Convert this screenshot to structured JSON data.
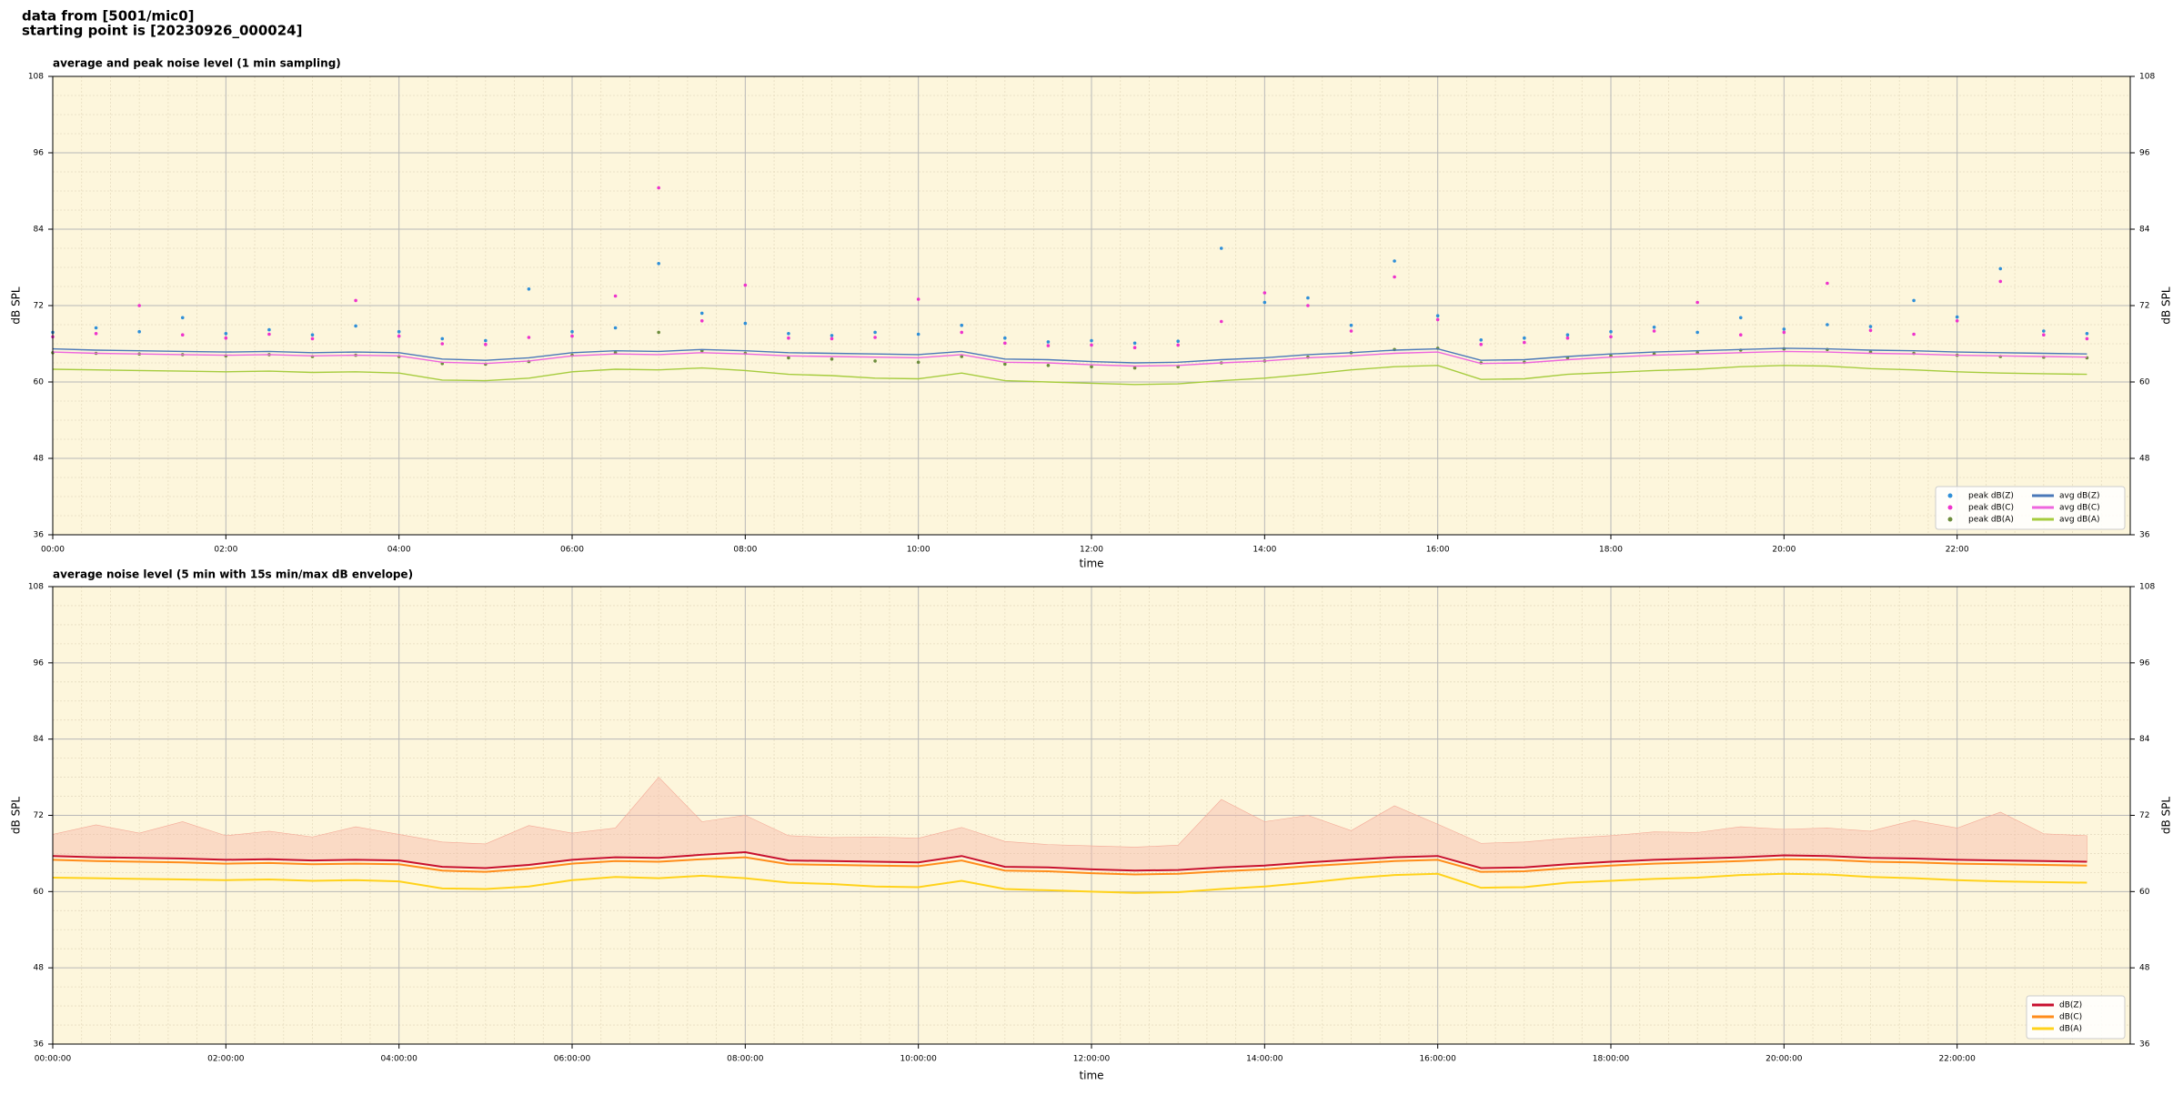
{
  "header": {
    "lines": [
      "data from [5001/mic0]",
      "starting point is [20230926_000024]"
    ]
  },
  "chart_data": [
    {
      "type": "line",
      "title": "average and peak noise level (1 min sampling)",
      "xlabel": "time",
      "ylabel": "dB SPL",
      "xlim": [
        0,
        1440
      ],
      "ylim": [
        36,
        108
      ],
      "yticks": [
        36,
        48,
        60,
        72,
        84,
        96,
        108
      ],
      "xticks": [
        {
          "value": 0,
          "label": "00:00"
        },
        {
          "value": 120,
          "label": "02:00"
        },
        {
          "value": 240,
          "label": "04:00"
        },
        {
          "value": 360,
          "label": "06:00"
        },
        {
          "value": 480,
          "label": "08:00"
        },
        {
          "value": 600,
          "label": "10:00"
        },
        {
          "value": 720,
          "label": "12:00"
        },
        {
          "value": 840,
          "label": "14:00"
        },
        {
          "value": 960,
          "label": "16:00"
        },
        {
          "value": 1080,
          "label": "18:00"
        },
        {
          "value": 1200,
          "label": "20:00"
        },
        {
          "value": 1320,
          "label": "22:00"
        }
      ],
      "grid": true,
      "legend": "lower right",
      "legend_columns": 2,
      "background": "#fdf6dc",
      "x": [
        0,
        30,
        60,
        90,
        120,
        150,
        180,
        210,
        240,
        270,
        300,
        330,
        360,
        390,
        420,
        450,
        480,
        510,
        540,
        570,
        600,
        630,
        660,
        690,
        720,
        750,
        780,
        810,
        840,
        870,
        900,
        930,
        960,
        990,
        1020,
        1050,
        1080,
        1110,
        1140,
        1170,
        1200,
        1230,
        1260,
        1290,
        1320,
        1350,
        1380,
        1410
      ],
      "series": [
        {
          "name": "peak dB(Z)",
          "kind": "scatter",
          "color": "#2f8fd8",
          "values": [
            67.8,
            68.5,
            67.9,
            70.1,
            67.6,
            68.2,
            67.4,
            68.8,
            67.9,
            66.8,
            66.5,
            74.6,
            67.9,
            68.5,
            78.6,
            70.8,
            69.2,
            67.6,
            67.3,
            67.8,
            67.5,
            68.9,
            66.9,
            66.3,
            66.5,
            66.1,
            66.4,
            81.0,
            72.5,
            73.2,
            68.9,
            79.0,
            70.4,
            66.6,
            66.9,
            67.4,
            67.9,
            68.6,
            67.8,
            70.1,
            68.3,
            69.0,
            68.7,
            72.8,
            70.2,
            77.8,
            68.0,
            67.6
          ]
        },
        {
          "name": "peak dB(C)",
          "kind": "scatter",
          "color": "#ee33cc",
          "values": [
            67.1,
            67.6,
            72.0,
            67.4,
            66.9,
            67.5,
            66.8,
            72.8,
            67.2,
            66.0,
            65.9,
            67.0,
            67.2,
            73.5,
            90.5,
            69.6,
            75.2,
            66.9,
            66.8,
            67.0,
            73.0,
            67.8,
            66.1,
            65.7,
            65.8,
            65.4,
            65.8,
            69.5,
            74.0,
            72.0,
            68.0,
            76.5,
            69.8,
            65.9,
            66.2,
            66.9,
            67.1,
            68.0,
            72.5,
            67.4,
            67.8,
            75.5,
            68.1,
            67.5,
            69.6,
            75.8,
            67.4,
            66.8
          ]
        },
        {
          "name": "peak dB(A)",
          "kind": "scatter",
          "color": "#6c8c3c",
          "values": [
            64.6,
            64.5,
            64.4,
            64.3,
            64.1,
            64.3,
            64.0,
            64.2,
            64.0,
            62.9,
            62.8,
            63.2,
            64.2,
            64.6,
            67.8,
            64.9,
            64.5,
            63.8,
            63.6,
            63.3,
            63.1,
            64.0,
            62.8,
            62.6,
            62.4,
            62.2,
            62.4,
            63.0,
            63.3,
            63.9,
            64.6,
            65.1,
            65.3,
            63.0,
            63.1,
            63.8,
            64.1,
            64.4,
            64.6,
            65.0,
            65.2,
            65.1,
            64.7,
            64.5,
            64.2,
            64.0,
            63.9,
            63.8
          ]
        },
        {
          "name": "avg dB(Z)",
          "kind": "line",
          "color": "#4a78b8",
          "values": [
            65.2,
            65.0,
            64.9,
            64.8,
            64.7,
            64.8,
            64.6,
            64.7,
            64.6,
            63.6,
            63.4,
            63.8,
            64.6,
            64.9,
            64.8,
            65.1,
            64.9,
            64.6,
            64.5,
            64.4,
            64.3,
            64.8,
            63.6,
            63.5,
            63.2,
            63.0,
            63.1,
            63.5,
            63.8,
            64.3,
            64.6,
            65.0,
            65.2,
            63.4,
            63.5,
            64.0,
            64.4,
            64.7,
            64.9,
            65.1,
            65.3,
            65.2,
            65.0,
            64.9,
            64.7,
            64.6,
            64.5,
            64.4
          ]
        },
        {
          "name": "avg dB(C)",
          "kind": "line",
          "color": "#ee66dd",
          "values": [
            64.7,
            64.5,
            64.4,
            64.3,
            64.2,
            64.3,
            64.1,
            64.2,
            64.1,
            63.1,
            62.9,
            63.3,
            64.1,
            64.4,
            64.3,
            64.6,
            64.4,
            64.1,
            64.0,
            63.9,
            63.8,
            64.3,
            63.1,
            63.0,
            62.7,
            62.5,
            62.6,
            63.0,
            63.3,
            63.8,
            64.1,
            64.5,
            64.7,
            62.9,
            63.0,
            63.5,
            63.9,
            64.2,
            64.4,
            64.6,
            64.8,
            64.7,
            64.5,
            64.4,
            64.2,
            64.1,
            64.0,
            63.9
          ]
        },
        {
          "name": "avg dB(A)",
          "kind": "line",
          "color": "#a6cc3e",
          "values": [
            62.0,
            61.9,
            61.8,
            61.7,
            61.6,
            61.7,
            61.5,
            61.6,
            61.4,
            60.3,
            60.2,
            60.6,
            61.6,
            62.0,
            61.9,
            62.2,
            61.8,
            61.2,
            61.0,
            60.6,
            60.5,
            61.4,
            60.2,
            60.0,
            59.8,
            59.6,
            59.7,
            60.2,
            60.6,
            61.2,
            61.9,
            62.4,
            62.6,
            60.4,
            60.5,
            61.2,
            61.5,
            61.8,
            62.0,
            62.4,
            62.6,
            62.5,
            62.1,
            61.9,
            61.6,
            61.4,
            61.3,
            61.2
          ]
        }
      ]
    },
    {
      "type": "line",
      "title": "average noise level (5 min with 15s min/max dB envelope)",
      "xlabel": "time",
      "ylabel": "dB SPL",
      "xlim": [
        0,
        1440
      ],
      "ylim": [
        36,
        108
      ],
      "yticks": [
        36,
        48,
        60,
        72,
        84,
        96,
        108
      ],
      "xticks": [
        {
          "value": 0,
          "label": "00:00:00"
        },
        {
          "value": 120,
          "label": "02:00:00"
        },
        {
          "value": 240,
          "label": "04:00:00"
        },
        {
          "value": 360,
          "label": "06:00:00"
        },
        {
          "value": 480,
          "label": "08:00:00"
        },
        {
          "value": 600,
          "label": "10:00:00"
        },
        {
          "value": 720,
          "label": "12:00:00"
        },
        {
          "value": 840,
          "label": "14:00:00"
        },
        {
          "value": 960,
          "label": "16:00:00"
        },
        {
          "value": 1080,
          "label": "18:00:00"
        },
        {
          "value": 1200,
          "label": "20:00:00"
        },
        {
          "value": 1320,
          "label": "22:00:00"
        }
      ],
      "grid": true,
      "legend": "lower right",
      "legend_columns": 1,
      "background": "#fdf6dc",
      "x": [
        0,
        30,
        60,
        90,
        120,
        150,
        180,
        210,
        240,
        270,
        300,
        330,
        360,
        390,
        420,
        450,
        480,
        510,
        540,
        570,
        600,
        630,
        660,
        690,
        720,
        750,
        780,
        810,
        840,
        870,
        900,
        930,
        960,
        990,
        1020,
        1050,
        1080,
        1110,
        1140,
        1170,
        1200,
        1230,
        1260,
        1290,
        1320,
        1350,
        1380,
        1410
      ],
      "series": [
        {
          "name": "dB(Z)",
          "kind": "line",
          "color": "#c8102e",
          "values": [
            65.6,
            65.4,
            65.3,
            65.2,
            65.0,
            65.1,
            64.9,
            65.0,
            64.9,
            63.9,
            63.7,
            64.2,
            65.0,
            65.4,
            65.3,
            65.8,
            66.2,
            64.9,
            64.8,
            64.7,
            64.6,
            65.6,
            63.9,
            63.8,
            63.5,
            63.3,
            63.4,
            63.8,
            64.1,
            64.6,
            65.0,
            65.4,
            65.6,
            63.7,
            63.8,
            64.3,
            64.7,
            65.0,
            65.2,
            65.4,
            65.7,
            65.6,
            65.3,
            65.2,
            65.0,
            64.9,
            64.8,
            64.7
          ],
          "max": [
            69.0,
            70.5,
            69.2,
            71.0,
            68.8,
            69.5,
            68.6,
            70.2,
            69.0,
            67.8,
            67.5,
            70.4,
            69.2,
            70.0,
            78.0,
            71.0,
            72.0,
            68.8,
            68.5,
            68.6,
            68.4,
            70.1,
            67.9,
            67.4,
            67.2,
            67.0,
            67.3,
            74.5,
            71.0,
            72.0,
            69.6,
            73.5,
            70.6,
            67.6,
            67.8,
            68.4,
            68.8,
            69.4,
            69.3,
            70.2,
            69.8,
            70.0,
            69.5,
            71.2,
            70.0,
            72.5,
            69.1,
            68.8
          ]
        },
        {
          "name": "dB(C)",
          "kind": "line",
          "color": "#ff8c1a",
          "values": [
            65.0,
            64.8,
            64.7,
            64.6,
            64.4,
            64.5,
            64.3,
            64.4,
            64.3,
            63.3,
            63.1,
            63.6,
            64.4,
            64.8,
            64.7,
            65.1,
            65.4,
            64.3,
            64.2,
            64.1,
            64.0,
            64.9,
            63.3,
            63.2,
            62.9,
            62.7,
            62.8,
            63.2,
            63.5,
            64.0,
            64.4,
            64.8,
            65.0,
            63.1,
            63.2,
            63.7,
            64.1,
            64.4,
            64.6,
            64.8,
            65.1,
            65.0,
            64.7,
            64.6,
            64.4,
            64.3,
            64.2,
            64.1
          ]
        },
        {
          "name": "dB(A)",
          "kind": "line",
          "color": "#ffd21a",
          "values": [
            62.2,
            62.1,
            62.0,
            61.9,
            61.8,
            61.9,
            61.7,
            61.8,
            61.6,
            60.5,
            60.4,
            60.8,
            61.8,
            62.3,
            62.1,
            62.5,
            62.1,
            61.4,
            61.2,
            60.8,
            60.7,
            61.7,
            60.4,
            60.2,
            60.0,
            59.8,
            59.9,
            60.4,
            60.8,
            61.4,
            62.1,
            62.6,
            62.8,
            60.6,
            60.7,
            61.4,
            61.7,
            62.0,
            62.2,
            62.6,
            62.8,
            62.7,
            62.3,
            62.1,
            61.8,
            61.6,
            61.5,
            61.4
          ]
        }
      ]
    }
  ]
}
